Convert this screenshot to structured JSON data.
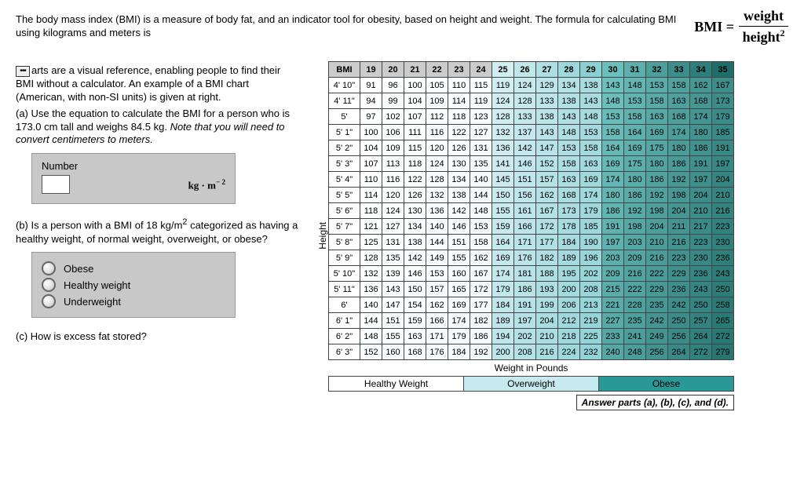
{
  "intro": "The body mass index (BMI) is a measure of body fat, and an indicator tool for obesity, based on height and weight. The formula for calculating BMI using kilograms and meters is",
  "formula": {
    "lhs": "BMI =",
    "num": "weight",
    "den_base": "height",
    "den_exp": "2"
  },
  "left": {
    "p1a": "arts are a visual reference, enabling people to find their BMI without a calculator. An example of a BMI chart (American, with non-SI units) is given at right.",
    "a_prefix": "(a) Use the equation to calculate the BMI for a person who is 173.0 cm tall and weighs 84.5 kg. ",
    "a_italic": "Note that you will need to convert centimeters to meters.",
    "number_label": "Number",
    "unit_base": "kg · m",
    "unit_exp": "− 2",
    "b_html": "(b) Is a person with a BMI of 18 kg/m",
    "b_sup": "2",
    "b_rest": " categorized as having a healthy weight, of normal weight, overweight, or obese?",
    "options": [
      "Obese",
      "Healthy weight",
      "Underweight"
    ],
    "c": "(c) How is excess fat stored?"
  },
  "chart": {
    "ylabel": "Height",
    "xlabel": "Weight in Pounds",
    "header_label": "BMI",
    "bmi": [
      19,
      20,
      21,
      22,
      23,
      24,
      25,
      26,
      27,
      28,
      29,
      30,
      31,
      32,
      33,
      34,
      35
    ],
    "heights": [
      "4' 10\"",
      "4' 11\"",
      "5'",
      "5' 1\"",
      "5' 2\"",
      "5' 3\"",
      "5' 4\"",
      "5' 5\"",
      "5' 6\"",
      "5' 7\"",
      "5' 8\"",
      "5' 9\"",
      "5' 10\"",
      "5' 11\"",
      "6'",
      "6' 1\"",
      "6' 2\"",
      "6' 3\""
    ],
    "rows": [
      [
        91,
        96,
        100,
        105,
        110,
        115,
        119,
        124,
        129,
        134,
        138,
        143,
        148,
        153,
        158,
        162,
        167
      ],
      [
        94,
        99,
        104,
        109,
        114,
        119,
        124,
        128,
        133,
        138,
        143,
        148,
        153,
        158,
        163,
        168,
        173
      ],
      [
        97,
        102,
        107,
        112,
        118,
        123,
        128,
        133,
        138,
        143,
        148,
        153,
        158,
        163,
        168,
        174,
        179
      ],
      [
        100,
        106,
        111,
        116,
        122,
        127,
        132,
        137,
        143,
        148,
        153,
        158,
        164,
        169,
        174,
        180,
        185
      ],
      [
        104,
        109,
        115,
        120,
        126,
        131,
        136,
        142,
        147,
        153,
        158,
        164,
        169,
        175,
        180,
        186,
        191
      ],
      [
        107,
        113,
        118,
        124,
        130,
        135,
        141,
        146,
        152,
        158,
        163,
        169,
        175,
        180,
        186,
        191,
        197
      ],
      [
        110,
        116,
        122,
        128,
        134,
        140,
        145,
        151,
        157,
        163,
        169,
        174,
        180,
        186,
        192,
        197,
        204
      ],
      [
        114,
        120,
        126,
        132,
        138,
        144,
        150,
        156,
        162,
        168,
        174,
        180,
        186,
        192,
        198,
        204,
        210
      ],
      [
        118,
        124,
        130,
        136,
        142,
        148,
        155,
        161,
        167,
        173,
        179,
        186,
        192,
        198,
        204,
        210,
        216
      ],
      [
        121,
        127,
        134,
        140,
        146,
        153,
        159,
        166,
        172,
        178,
        185,
        191,
        198,
        204,
        211,
        217,
        223
      ],
      [
        125,
        131,
        138,
        144,
        151,
        158,
        164,
        171,
        177,
        184,
        190,
        197,
        203,
        210,
        216,
        223,
        230
      ],
      [
        128,
        135,
        142,
        149,
        155,
        162,
        169,
        176,
        182,
        189,
        196,
        203,
        209,
        216,
        223,
        230,
        236
      ],
      [
        132,
        139,
        146,
        153,
        160,
        167,
        174,
        181,
        188,
        195,
        202,
        209,
        216,
        222,
        229,
        236,
        243
      ],
      [
        136,
        143,
        150,
        157,
        165,
        172,
        179,
        186,
        193,
        200,
        208,
        215,
        222,
        229,
        236,
        243,
        250
      ],
      [
        140,
        147,
        154,
        162,
        169,
        177,
        184,
        191,
        199,
        206,
        213,
        221,
        228,
        235,
        242,
        250,
        258
      ],
      [
        144,
        151,
        159,
        166,
        174,
        182,
        189,
        197,
        204,
        212,
        219,
        227,
        235,
        242,
        250,
        257,
        265
      ],
      [
        148,
        155,
        163,
        171,
        179,
        186,
        194,
        202,
        210,
        218,
        225,
        233,
        241,
        249,
        256,
        264,
        272
      ],
      [
        152,
        160,
        168,
        176,
        184,
        192,
        200,
        208,
        216,
        224,
        232,
        240,
        248,
        256,
        264,
        272,
        279
      ]
    ],
    "colors": {
      "header": "#cccccc",
      "healthy_start": "#ffffff",
      "healthy_end": "#eef8fa",
      "over_start": "#d3eef3",
      "over_end": "#8bd0d4",
      "obese_start": "#6bbfbd",
      "obese_end": "#1f6e6a"
    },
    "legend": {
      "hw": "Healthy Weight",
      "ow": "Overweight",
      "ob": "Obese"
    },
    "section_bounds": {
      "healthy": [
        0,
        6
      ],
      "over": [
        6,
        11
      ],
      "obese": [
        11,
        17
      ]
    }
  },
  "answer_note": "Answer parts (a), (b), (c), and (d)."
}
